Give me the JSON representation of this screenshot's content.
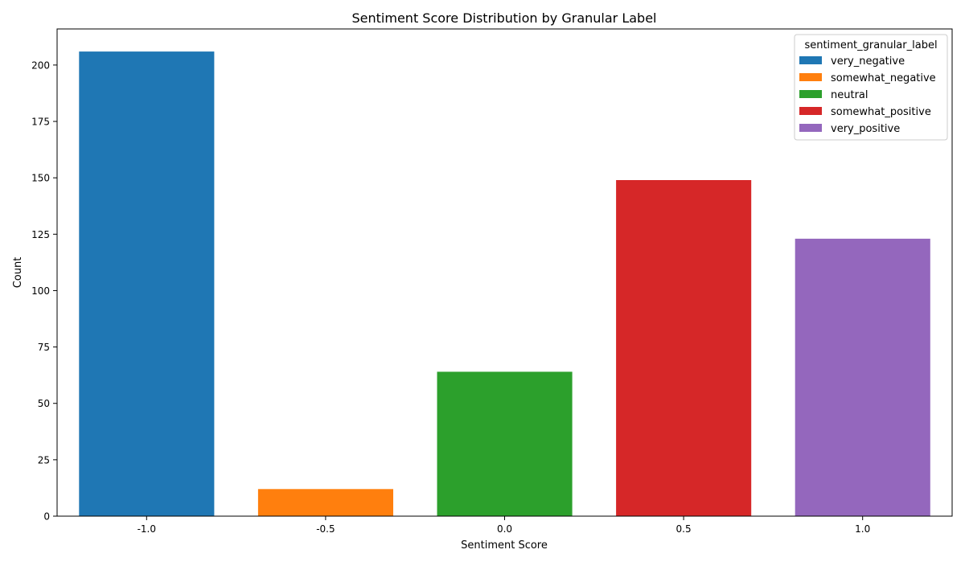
{
  "chart_data": {
    "type": "bar",
    "title": "Sentiment Score Distribution by Granular Label",
    "xlabel": "Sentiment Score",
    "ylabel": "Count",
    "categories": [
      "-1.0",
      "-0.5",
      "0.0",
      "0.5",
      "1.0"
    ],
    "ylim": [
      0,
      216
    ],
    "yticks": [
      0,
      25,
      50,
      75,
      100,
      125,
      150,
      175,
      200
    ],
    "grid": false,
    "legend": {
      "title": "sentiment_granular_label",
      "placement": "top-right"
    },
    "series": [
      {
        "name": "very_negative",
        "category": "-1.0",
        "value": 206,
        "color": "#1f77b4"
      },
      {
        "name": "somewhat_negative",
        "category": "-0.5",
        "value": 12,
        "color": "#ff7f0e"
      },
      {
        "name": "neutral",
        "category": "0.0",
        "value": 64,
        "color": "#2ca02c"
      },
      {
        "name": "somewhat_positive",
        "category": "0.5",
        "value": 149,
        "color": "#d62728"
      },
      {
        "name": "very_positive",
        "category": "1.0",
        "value": 123,
        "color": "#9467bd"
      }
    ]
  }
}
